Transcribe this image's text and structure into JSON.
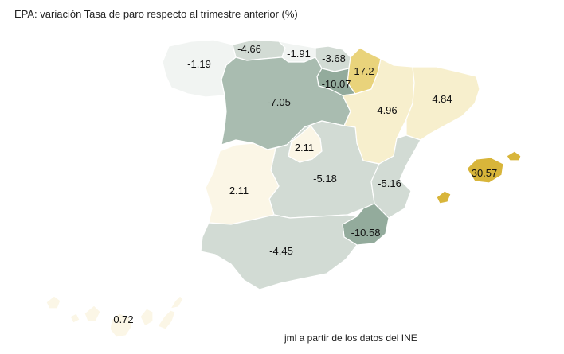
{
  "title": "EPA: variación Tasa de paro respecto al trimestre anterior (%)",
  "credit": "jml a partir de los datos del INE",
  "colors": {
    "strong_negative": "#93ab9c",
    "negative": "#a9bcb0",
    "mild_negative": "#d2dbd4",
    "slight_negative": "#f1f4f2",
    "slight_positive": "#fbf6e6",
    "positive": "#f7efcd",
    "strong_positive": "#e9d37b",
    "max_positive": "#d8b53a"
  },
  "regions": [
    {
      "id": "galicia",
      "value": "-1.19",
      "color_key": "slight_negative"
    },
    {
      "id": "asturias",
      "value": "-4.66",
      "color_key": "mild_negative"
    },
    {
      "id": "cantabria",
      "value": "-1.91",
      "color_key": "slight_negative"
    },
    {
      "id": "pais-vasco",
      "value": "-3.68",
      "color_key": "mild_negative"
    },
    {
      "id": "navarra",
      "value": "17.2",
      "color_key": "strong_positive"
    },
    {
      "id": "la-rioja",
      "value": "-10.07",
      "color_key": "strong_negative"
    },
    {
      "id": "castilla-leon",
      "value": "-7.05",
      "color_key": "negative"
    },
    {
      "id": "aragon",
      "value": "4.96",
      "color_key": "positive"
    },
    {
      "id": "cataluna",
      "value": "4.84",
      "color_key": "positive"
    },
    {
      "id": "madrid",
      "value": "2.11",
      "color_key": "slight_positive"
    },
    {
      "id": "extremadura",
      "value": "2.11",
      "color_key": "slight_positive"
    },
    {
      "id": "castilla-la-mancha",
      "value": "-5.18",
      "color_key": "mild_negative"
    },
    {
      "id": "valencia",
      "value": "-5.16",
      "color_key": "mild_negative"
    },
    {
      "id": "baleares",
      "value": "30.57",
      "color_key": "max_positive"
    },
    {
      "id": "murcia",
      "value": "-10.58",
      "color_key": "strong_negative"
    },
    {
      "id": "andalucia",
      "value": "-4.45",
      "color_key": "mild_negative"
    },
    {
      "id": "canarias",
      "value": "0.72",
      "color_key": "slight_positive"
    }
  ]
}
